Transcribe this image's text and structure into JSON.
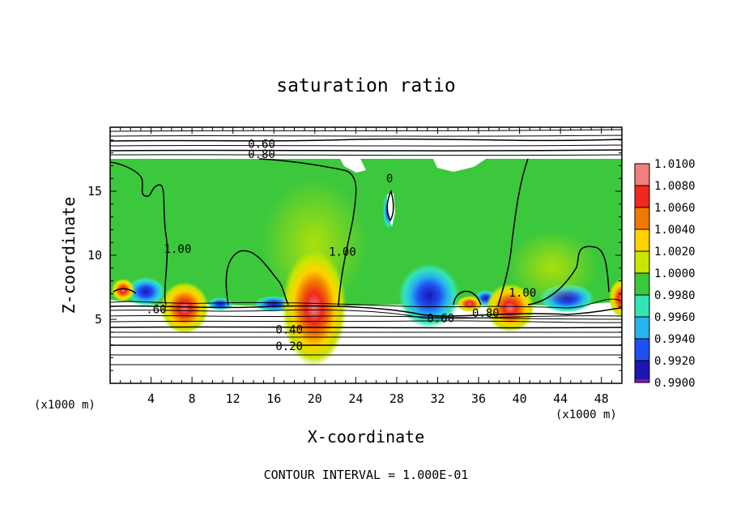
{
  "chart_data": {
    "type": "heatmap",
    "title": "saturation ratio",
    "xlabel": "X-coordinate",
    "ylabel": "Z-coordinate",
    "x_unit": "(x1000 m)",
    "z_unit": "(x1000 m)",
    "xlim": [
      0,
      50
    ],
    "ylim": [
      0,
      20
    ],
    "x_ticks": [
      4,
      8,
      12,
      16,
      20,
      24,
      28,
      32,
      36,
      40,
      44,
      48
    ],
    "y_ticks": [
      5,
      10,
      15
    ],
    "footer": "CONTOUR INTERVAL = 1.000E-01",
    "colorbar": {
      "levels": [
        "1.0100",
        "1.0080",
        "1.0060",
        "1.0040",
        "1.0020",
        "1.0000",
        "0.9980",
        "0.9960",
        "0.9940",
        "0.9920",
        "0.9900"
      ],
      "colors": [
        "#f08080",
        "#f0281e",
        "#f07800",
        "#ffd200",
        "#c8e600",
        "#3cc83c",
        "#32e6b4",
        "#28b4f0",
        "#1e50f0",
        "#1e14b4",
        "#8c14b4"
      ]
    },
    "contour_labels": [
      {
        "text": "0.60",
        "x": 14.8,
        "z": 18.7
      },
      {
        "text": "0.80",
        "x": 14.8,
        "z": 17.9
      },
      {
        "text": "1.00",
        "x": 6.6,
        "z": 10.5
      },
      {
        "text": "1.00",
        "x": 22.7,
        "z": 10.3
      },
      {
        "text": "1.00",
        "x": 40.3,
        "z": 7.1
      },
      {
        "text": "0",
        "x": 27.3,
        "z": 16.0
      },
      {
        "text": ".60",
        "x": 4.5,
        "z": 5.8
      },
      {
        "text": "0.60",
        "x": 32.3,
        "z": 5.1
      },
      {
        "text": "0.80",
        "x": 36.7,
        "z": 5.5
      },
      {
        "text": "0.40",
        "x": 17.5,
        "z": 4.2
      },
      {
        "text": "0.20",
        "x": 17.5,
        "z": 2.9
      }
    ],
    "features": {
      "supersaturated_region_z": [
        6,
        17.5
      ],
      "warm_peaks_x": [
        6,
        20,
        39,
        49.5
      ],
      "cool_troughs_x": [
        3,
        13,
        30,
        46
      ]
    }
  }
}
